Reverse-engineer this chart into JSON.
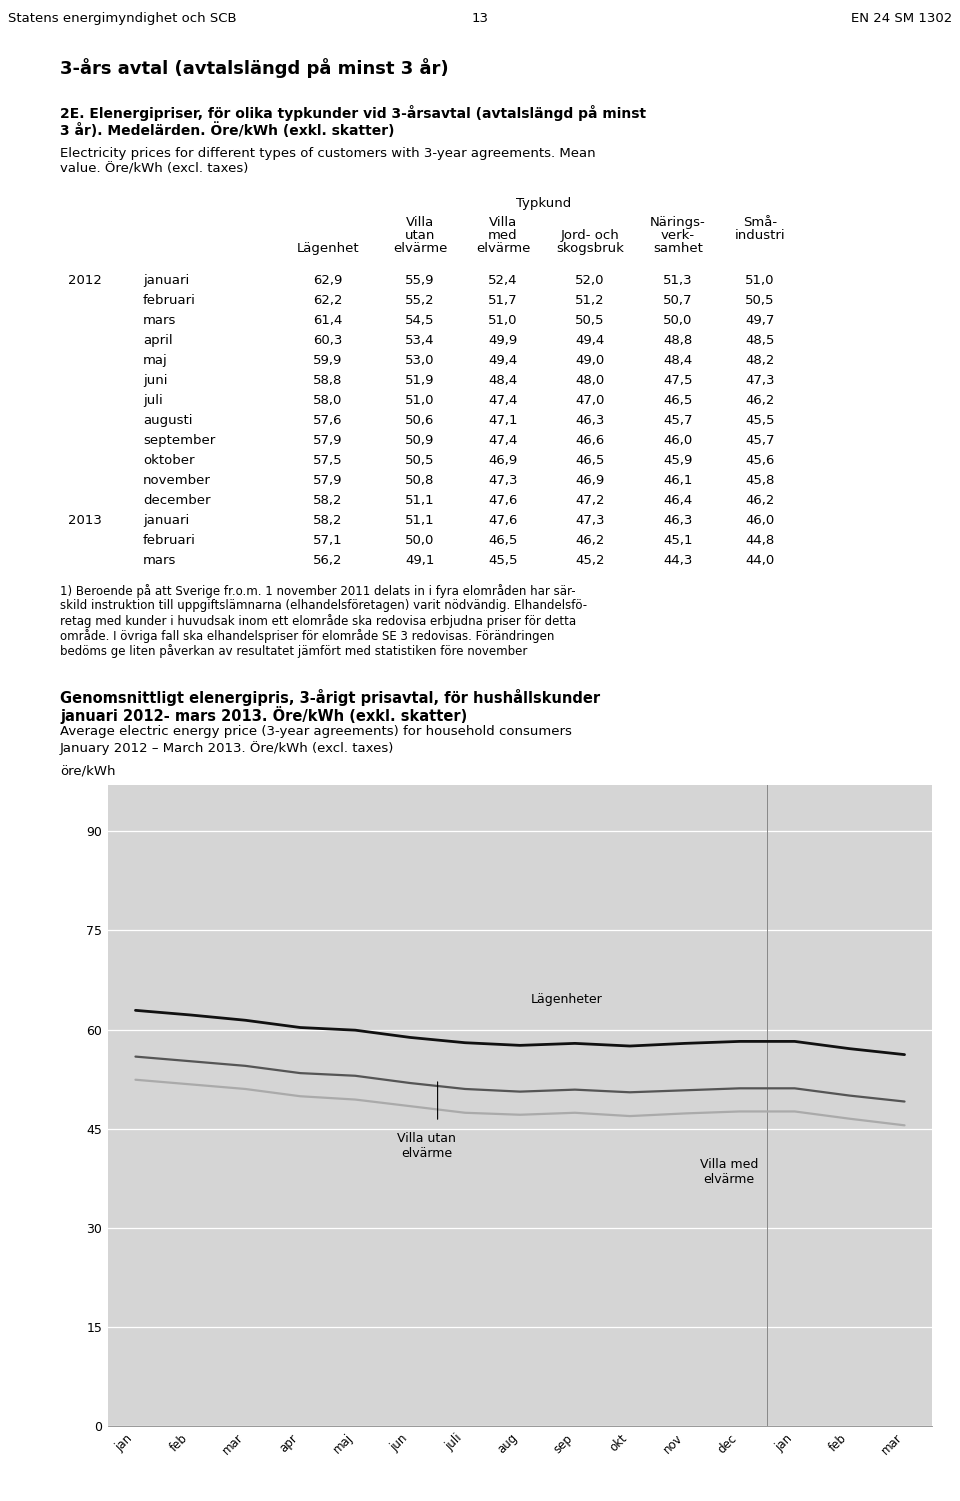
{
  "page_header_left": "Statens energimyndighet och SCB",
  "page_header_center": "13",
  "page_header_right": "EN 24 SM 1302",
  "section_title": "3-års avtal (avtalsängd på minst 3 år)",
  "table_title_bold_line1": "2E. Elenergipriser, för olika typkunder vid 3-årsavtal (avtalsängd på minst",
  "table_title_bold_line2": "3 år). Medelärden. Öre/kWh (exkl. skatter)",
  "table_subtitle_line1": "Electricity prices for different types of customers with 3-year agreements. Mean",
  "table_subtitle_line2": "value. Öre/kWh (excl. taxes)",
  "typkund_header": "Typkund",
  "col_headers_line1": [
    "",
    "Villa",
    "Villa",
    "",
    "Närings-",
    "Små-"
  ],
  "col_headers_line2": [
    "",
    "utan",
    "med",
    "Jord- och",
    "verk-",
    "industri"
  ],
  "col_headers_line3": [
    "Lägenhet",
    "elvärme",
    "elvärme",
    "skogsbruk",
    "samhet",
    ""
  ],
  "months_2012": [
    "januari",
    "februari",
    "mars",
    "april",
    "maj",
    "juni",
    "juli",
    "augusti",
    "september",
    "oktober",
    "november",
    "december"
  ],
  "months_2013": [
    "januari",
    "februari",
    "mars"
  ],
  "data_2012": [
    [
      62.9,
      55.9,
      52.4,
      52.0,
      51.3,
      51.0
    ],
    [
      62.2,
      55.2,
      51.7,
      51.2,
      50.7,
      50.5
    ],
    [
      61.4,
      54.5,
      51.0,
      50.5,
      50.0,
      49.7
    ],
    [
      60.3,
      53.4,
      49.9,
      49.4,
      48.8,
      48.5
    ],
    [
      59.9,
      53.0,
      49.4,
      49.0,
      48.4,
      48.2
    ],
    [
      58.8,
      51.9,
      48.4,
      48.0,
      47.5,
      47.3
    ],
    [
      58.0,
      51.0,
      47.4,
      47.0,
      46.5,
      46.2
    ],
    [
      57.6,
      50.6,
      47.1,
      46.3,
      45.7,
      45.5
    ],
    [
      57.9,
      50.9,
      47.4,
      46.6,
      46.0,
      45.7
    ],
    [
      57.5,
      50.5,
      46.9,
      46.5,
      45.9,
      45.6
    ],
    [
      57.9,
      50.8,
      47.3,
      46.9,
      46.1,
      45.8
    ],
    [
      58.2,
      51.1,
      47.6,
      47.2,
      46.4,
      46.2
    ]
  ],
  "data_2013": [
    [
      58.2,
      51.1,
      47.6,
      47.3,
      46.3,
      46.0
    ],
    [
      57.1,
      50.0,
      46.5,
      46.2,
      45.1,
      44.8
    ],
    [
      56.2,
      49.1,
      45.5,
      45.2,
      44.3,
      44.0
    ]
  ],
  "chart_ylabel": "öre/kWh",
  "chart_yticks": [
    0,
    15,
    30,
    45,
    60,
    75,
    90
  ],
  "chart_xtick_labels": [
    "jan",
    "feb",
    "mar",
    "apr",
    "maj",
    "jun",
    "juli",
    "aug",
    "sep",
    "okt",
    "nov",
    "dec",
    "jan",
    "feb",
    "mar"
  ],
  "lagenheter_data": [
    62.9,
    62.2,
    61.4,
    60.3,
    59.9,
    58.8,
    58.0,
    57.6,
    57.9,
    57.5,
    57.9,
    58.2,
    58.2,
    57.1,
    56.2
  ],
  "villa_utan_data": [
    55.9,
    55.2,
    54.5,
    53.4,
    53.0,
    51.9,
    51.0,
    50.6,
    50.9,
    50.5,
    50.8,
    51.1,
    51.1,
    50.0,
    49.1
  ],
  "villa_med_data": [
    52.4,
    51.7,
    51.0,
    49.9,
    49.4,
    48.4,
    47.4,
    47.1,
    47.4,
    46.9,
    47.3,
    47.6,
    47.6,
    46.5,
    45.5
  ],
  "line_color_lagenheter": "#111111",
  "line_color_villa_utan": "#555555",
  "line_color_villa_med": "#aaaaaa",
  "chart_bg_color": "#d5d5d5",
  "chart_title_bold": "Genomsnittligt elenergipris, 3-årigt prisavtal, för hushållskunder",
  "chart_title_bold2": "januari 2012- mars 2013. Öre/kWh (exkl. skatter)",
  "chart_subtitle1": "Average electric energy price (3-year agreements) for household consumers",
  "chart_subtitle2": "January 2012 – March 2013. Öre/kWh (excl. taxes)"
}
